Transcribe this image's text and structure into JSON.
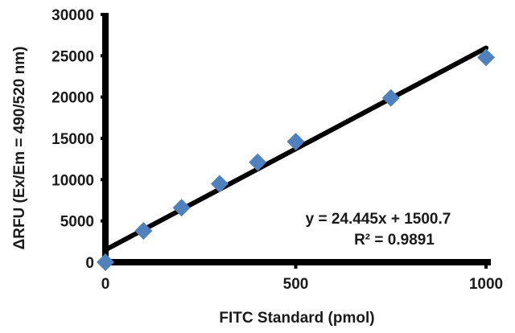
{
  "chart_data": {
    "type": "scatter",
    "xlabel": "FITC Standard (pmol)",
    "ylabel": "ΔRFU (Ex/Em = 490/520 nm)",
    "xlim": [
      0,
      1000
    ],
    "ylim": [
      0,
      30000
    ],
    "x_ticks": [
      0,
      500,
      1000
    ],
    "y_ticks": [
      0,
      5000,
      10000,
      15000,
      20000,
      25000,
      30000
    ],
    "grid": false,
    "series": [
      {
        "marker": "diamond",
        "color": "#4f81bd",
        "points": [
          {
            "x": 0,
            "y": 0
          },
          {
            "x": 100,
            "y": 3800
          },
          {
            "x": 200,
            "y": 6600
          },
          {
            "x": 300,
            "y": 9500
          },
          {
            "x": 400,
            "y": 12100
          },
          {
            "x": 500,
            "y": 14600
          },
          {
            "x": 750,
            "y": 19900
          },
          {
            "x": 1000,
            "y": 24800
          }
        ]
      }
    ],
    "trendline": {
      "type": "linear",
      "slope": 24.445,
      "intercept": 1500.7,
      "color": "#000000",
      "equation_label": "y = 24.445x + 1500.7",
      "r2_label": "R² = 0.9891"
    }
  }
}
